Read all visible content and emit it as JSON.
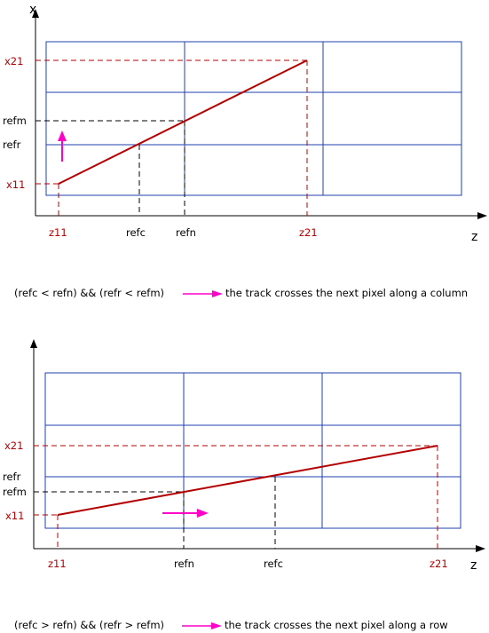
{
  "colors": {
    "grid": "#1f3fb0",
    "track": "#b40000",
    "dashed_black": "#000000",
    "arrow": "#ff00c8"
  },
  "diagram1": {
    "x_axis_label": "x",
    "z_axis_label": "z",
    "y_labels": {
      "x21": "x21",
      "refm": "refm",
      "refr": "refr",
      "x11": "x11"
    },
    "x_labels": {
      "z11": "z11",
      "refc": "refc",
      "refn": "refn",
      "z21": "z21"
    },
    "condition": "(refc < refn) && (refr < refm)",
    "result": "the track crosses the next pixel along a column"
  },
  "diagram2": {
    "z_axis_label": "z",
    "y_labels": {
      "x21": "x21",
      "refr": "refr",
      "refm": "refm",
      "x11": "x11"
    },
    "x_labels": {
      "z11": "z11",
      "refn": "refn",
      "refc": "refc",
      "z21": "z21"
    },
    "condition": "(refc > refn) && (refr > refm)",
    "result": "the track crosses the next pixel along a row"
  }
}
